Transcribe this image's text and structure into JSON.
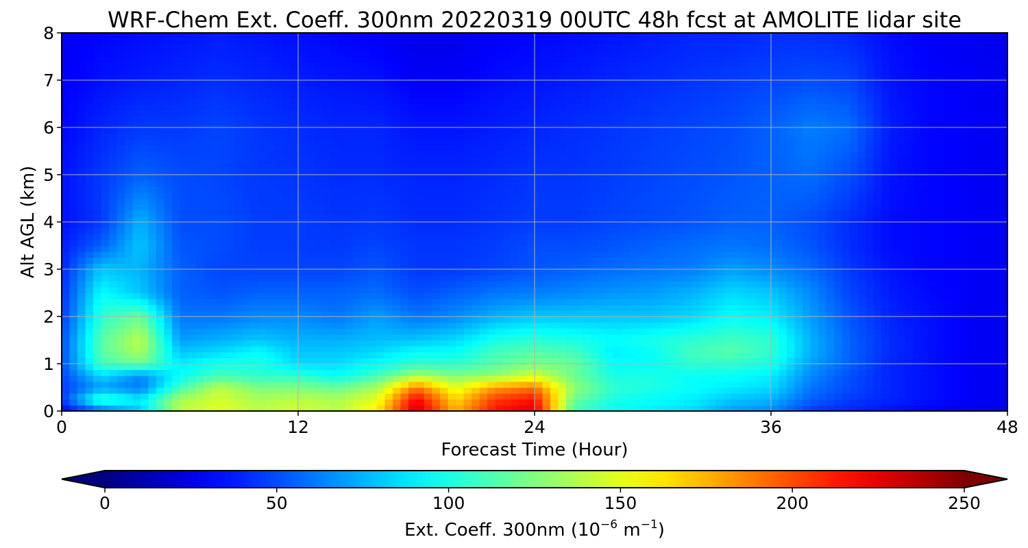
{
  "chart_data": {
    "type": "heatmap",
    "subtype": "filled-contour",
    "title": "WRF-Chem Ext. Coeff. 300nm  20220319 00UTC 48h fcst at AMOLITE lidar site",
    "xlabel": "Forecast Time (Hour)",
    "ylabel": "Alt AGL (km)",
    "xlim": [
      0,
      48
    ],
    "ylim": [
      0,
      8
    ],
    "xticks": [
      0,
      12,
      24,
      36,
      48
    ],
    "yticks": [
      0,
      1,
      2,
      3,
      4,
      5,
      6,
      7,
      8
    ],
    "grid": true,
    "colormap": "jet",
    "colorbar": {
      "orientation": "horizontal",
      "placement": "bottom",
      "label": "Ext. Coeff. 300nm  (10",
      "label_exp1": "−6",
      "label_mid": " m",
      "label_exp2": "−1",
      "label_end": ")",
      "range": [
        0,
        250
      ],
      "ticks": [
        0,
        50,
        100,
        150,
        200,
        250
      ],
      "extend": "both"
    },
    "x": [
      0,
      2,
      4,
      6,
      8,
      10,
      12,
      14,
      16,
      18,
      20,
      22,
      24,
      26,
      28,
      30,
      32,
      34,
      36,
      38,
      40,
      42,
      44,
      46,
      48
    ],
    "y": [
      0,
      0.25,
      0.5,
      0.75,
      1,
      1.25,
      1.5,
      2,
      2.5,
      3,
      3.5,
      4,
      5,
      6,
      7,
      8
    ],
    "z": [
      [
        30,
        55,
        80,
        140,
        150,
        140,
        145,
        140,
        160,
        230,
        175,
        215,
        225,
        110,
        95,
        90,
        85,
        70,
        65,
        45,
        40,
        35,
        30,
        28,
        25
      ],
      [
        45,
        110,
        90,
        135,
        145,
        135,
        140,
        135,
        150,
        220,
        165,
        205,
        215,
        120,
        100,
        95,
        90,
        80,
        75,
        55,
        45,
        40,
        35,
        30,
        28
      ],
      [
        45,
        70,
        60,
        110,
        140,
        125,
        125,
        120,
        135,
        190,
        150,
        180,
        190,
        130,
        105,
        100,
        95,
        90,
        85,
        60,
        50,
        40,
        35,
        30,
        28
      ],
      [
        48,
        85,
        65,
        95,
        110,
        105,
        105,
        95,
        110,
        135,
        125,
        130,
        145,
        120,
        100,
        100,
        95,
        95,
        90,
        65,
        50,
        40,
        35,
        30,
        28
      ],
      [
        50,
        110,
        120,
        90,
        100,
        100,
        85,
        85,
        95,
        105,
        105,
        115,
        125,
        120,
        95,
        95,
        105,
        105,
        100,
        70,
        55,
        40,
        35,
        30,
        28
      ],
      [
        50,
        115,
        135,
        80,
        85,
        95,
        80,
        80,
        85,
        95,
        95,
        110,
        115,
        110,
        90,
        95,
        110,
        115,
        105,
        75,
        55,
        42,
        35,
        30,
        28
      ],
      [
        50,
        115,
        140,
        70,
        75,
        80,
        75,
        75,
        78,
        80,
        85,
        100,
        105,
        100,
        95,
        100,
        105,
        110,
        105,
        75,
        55,
        42,
        35,
        30,
        28
      ],
      [
        45,
        105,
        120,
        60,
        60,
        65,
        65,
        60,
        70,
        60,
        65,
        75,
        80,
        80,
        80,
        80,
        85,
        95,
        90,
        70,
        52,
        40,
        35,
        30,
        28
      ],
      [
        42,
        95,
        80,
        55,
        52,
        55,
        55,
        55,
        58,
        50,
        55,
        60,
        62,
        65,
        68,
        70,
        75,
        85,
        80,
        65,
        48,
        38,
        33,
        30,
        28
      ],
      [
        40,
        80,
        75,
        55,
        48,
        48,
        48,
        48,
        52,
        45,
        45,
        48,
        52,
        55,
        58,
        60,
        62,
        70,
        65,
        58,
        45,
        36,
        32,
        30,
        28
      ],
      [
        38,
        55,
        80,
        52,
        50,
        46,
        46,
        45,
        48,
        44,
        44,
        46,
        50,
        50,
        52,
        55,
        58,
        60,
        58,
        52,
        42,
        34,
        32,
        30,
        28
      ],
      [
        35,
        45,
        75,
        50,
        50,
        46,
        46,
        44,
        45,
        42,
        42,
        44,
        46,
        46,
        48,
        50,
        52,
        55,
        55,
        50,
        42,
        34,
        32,
        30,
        28
      ],
      [
        35,
        45,
        55,
        50,
        48,
        45,
        44,
        42,
        42,
        40,
        40,
        42,
        44,
        44,
        46,
        48,
        50,
        52,
        55,
        58,
        50,
        36,
        32,
        30,
        28
      ],
      [
        32,
        40,
        45,
        45,
        48,
        44,
        42,
        40,
        40,
        36,
        36,
        38,
        40,
        42,
        44,
        46,
        48,
        50,
        55,
        62,
        58,
        38,
        32,
        30,
        28
      ],
      [
        30,
        35,
        38,
        40,
        42,
        40,
        38,
        36,
        35,
        30,
        30,
        34,
        36,
        38,
        40,
        42,
        44,
        46,
        48,
        50,
        48,
        36,
        32,
        30,
        28
      ],
      [
        28,
        32,
        34,
        36,
        38,
        36,
        34,
        32,
        30,
        26,
        26,
        30,
        32,
        34,
        36,
        38,
        40,
        40,
        42,
        42,
        40,
        34,
        30,
        28,
        26
      ]
    ]
  }
}
